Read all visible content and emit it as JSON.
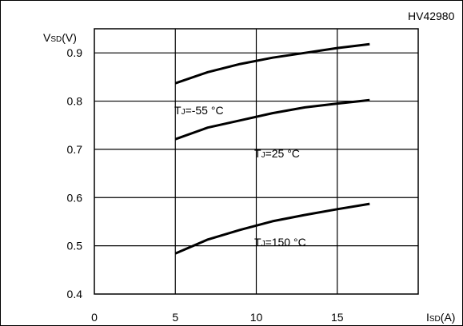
{
  "chart_data": {
    "type": "line",
    "code": "HV42980",
    "y_axis_label": {
      "main": "V",
      "sub": "SD",
      "unit": "(V)"
    },
    "x_axis_label": {
      "main": "I",
      "sub": "SD",
      "unit": "(A)"
    },
    "xlim": [
      0,
      20
    ],
    "ylim": [
      0.4,
      0.95
    ],
    "x_ticks": [
      0,
      5,
      10,
      15
    ],
    "x_tick_labels": [
      "0",
      "5",
      "10",
      "15"
    ],
    "y_ticks": [
      0.4,
      0.5,
      0.6,
      0.7,
      0.8,
      0.9
    ],
    "y_tick_labels": [
      "0.4",
      "0.5",
      "0.6",
      "0.7",
      "0.8",
      "0.9"
    ],
    "grid": true,
    "series": [
      {
        "name": "TJ=-55 °C",
        "label": {
          "main": "T",
          "sub": "J",
          "rest": "=-55 °C"
        },
        "x": [
          5,
          7,
          9,
          11,
          13,
          15,
          17
        ],
        "y": [
          0.837,
          0.86,
          0.877,
          0.89,
          0.9,
          0.91,
          0.918
        ]
      },
      {
        "name": "TJ=25 °C",
        "label": {
          "main": "T",
          "sub": "J",
          "rest": "=25 °C"
        },
        "x": [
          5,
          7,
          9,
          11,
          13,
          15,
          17
        ],
        "y": [
          0.721,
          0.745,
          0.76,
          0.775,
          0.787,
          0.795,
          0.802
        ]
      },
      {
        "name": "TJ=150 °C",
        "label": {
          "main": "T",
          "sub": "J",
          "rest": "=150 °C"
        },
        "x": [
          5,
          7,
          9,
          11,
          13,
          15,
          17
        ],
        "y": [
          0.484,
          0.513,
          0.533,
          0.551,
          0.564,
          0.576,
          0.587
        ]
      }
    ]
  }
}
